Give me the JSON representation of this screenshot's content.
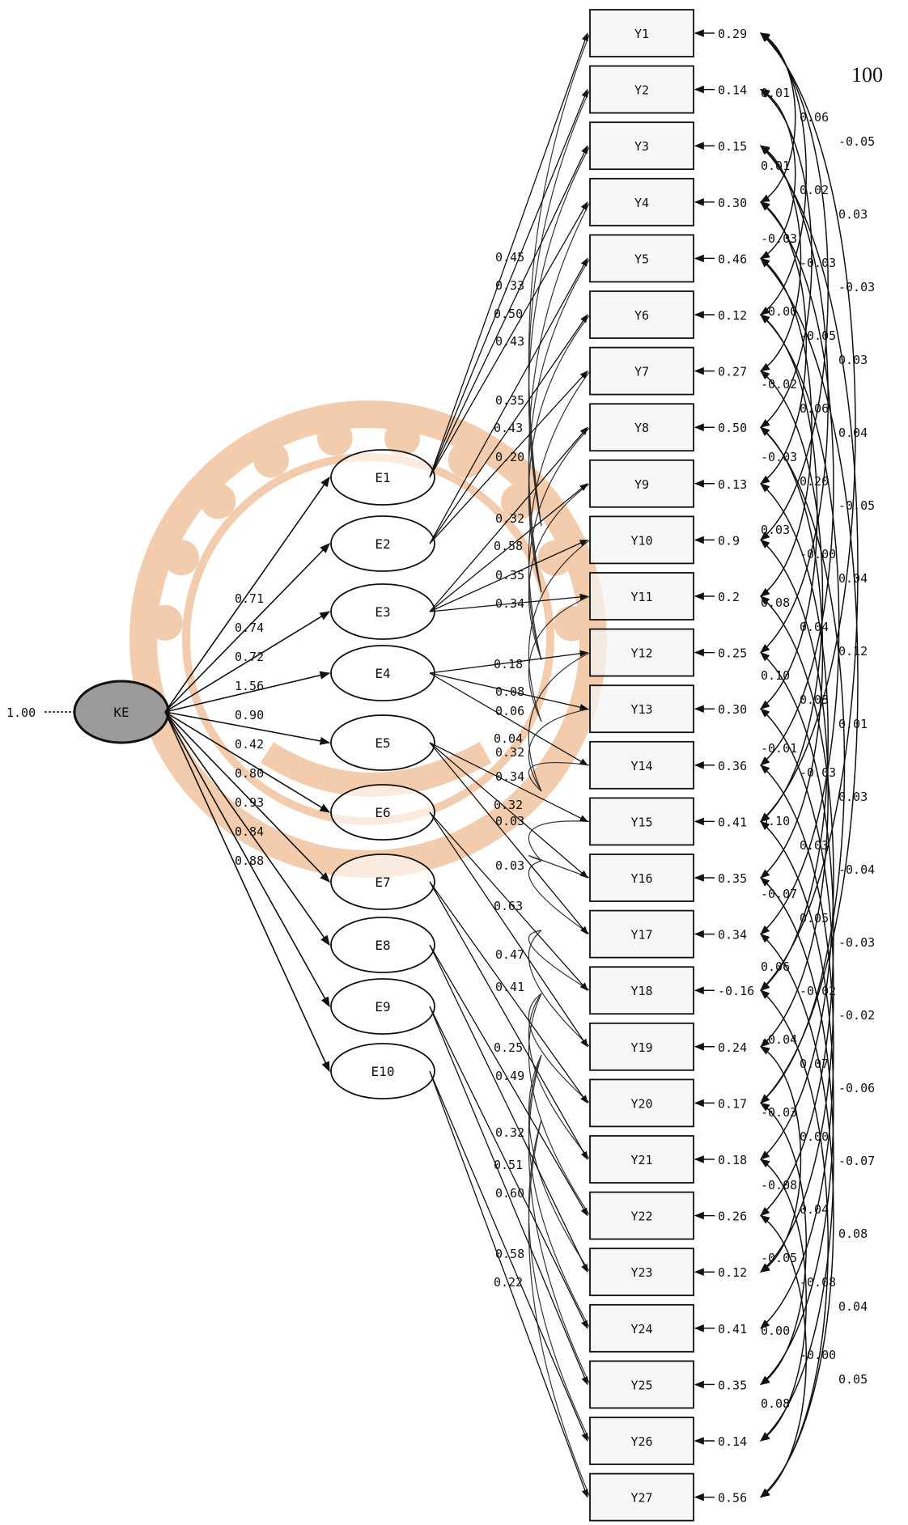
{
  "page_number": "100",
  "latent": {
    "label": "KE",
    "variance": "1.00"
  },
  "factors": [
    {
      "label": "E1",
      "loading": "0.71"
    },
    {
      "label": "E2",
      "loading": "0.74"
    },
    {
      "label": "E3",
      "loading": "0.72"
    },
    {
      "label": "E4",
      "loading": "1.56"
    },
    {
      "label": "E5",
      "loading": "0.90"
    },
    {
      "label": "E6",
      "loading": "0.42"
    },
    {
      "label": "E7",
      "loading": "0.80"
    },
    {
      "label": "E8",
      "loading": "0.93"
    },
    {
      "label": "E9",
      "loading": "0.84"
    },
    {
      "label": "E10",
      "loading": "0.88"
    }
  ],
  "indicators": [
    {
      "label": "Y1",
      "error": "0.29"
    },
    {
      "label": "Y2",
      "error": "0.14"
    },
    {
      "label": "Y3",
      "error": "0.15"
    },
    {
      "label": "Y4",
      "error": "0.30"
    },
    {
      "label": "Y5",
      "error": "0.46"
    },
    {
      "label": "Y6",
      "error": "0.12"
    },
    {
      "label": "Y7",
      "error": "0.27"
    },
    {
      "label": "Y8",
      "error": "0.50"
    },
    {
      "label": "Y9",
      "error": "0.13"
    },
    {
      "label": "Y10",
      "error": "0.9"
    },
    {
      "label": "Y11",
      "error": "0.2"
    },
    {
      "label": "Y12",
      "error": "0.25"
    },
    {
      "label": "Y13",
      "error": "0.30"
    },
    {
      "label": "Y14",
      "error": "0.36"
    },
    {
      "label": "Y15",
      "error": "0.41"
    },
    {
      "label": "Y16",
      "error": "0.35"
    },
    {
      "label": "Y17",
      "error": "0.34"
    },
    {
      "label": "Y18",
      "error": "-0.16"
    },
    {
      "label": "Y19",
      "error": "0.24"
    },
    {
      "label": "Y20",
      "error": "0.17"
    },
    {
      "label": "Y21",
      "error": "0.18"
    },
    {
      "label": "Y22",
      "error": "0.26"
    },
    {
      "label": "Y23",
      "error": "0.12"
    },
    {
      "label": "Y24",
      "error": "0.41"
    },
    {
      "label": "Y25",
      "error": "0.35"
    },
    {
      "label": "Y26",
      "error": "0.14"
    },
    {
      "label": "Y27",
      "error": "0.56"
    }
  ],
  "indicator_loadings": [
    "0.45",
    "0.33",
    "0.50",
    "0.43",
    "0.35",
    "0.43",
    "0.20",
    "0.32",
    "0.58",
    "0.35",
    "0.34",
    "0.18",
    "0.08",
    "0.06",
    "0.04",
    "0.32",
    "0.34",
    "0.32",
    "0.03",
    "0.03",
    "0.63",
    "0.47",
    "0.41",
    "0.25",
    "0.49",
    "0.32",
    "0.51",
    "0.60",
    "0.58",
    "0.22"
  ],
  "covariances": [
    "0.01",
    "0.06",
    "-0.05",
    "0.01",
    "0.02",
    "0.03",
    "-0.03",
    "-0.03",
    "-0.03",
    "-0.00",
    "-0.05",
    "0.03",
    "-0.02",
    "0.06",
    "0.04",
    "-0.03",
    "0.20",
    "-0.05",
    "0.03",
    "-0.00",
    "0.04",
    "0.08",
    "0.04",
    "0.12",
    "0.10",
    "0.03",
    "0.01",
    "-0.01",
    "-0.03",
    "0.03",
    "0.10",
    "0.03",
    "-0.04",
    "-0.07",
    "0.05",
    "-0.03",
    "0.06",
    "-0.02",
    "-0.02",
    "-0.04",
    "0.07",
    "-0.06",
    "-0.03",
    "0.00",
    "-0.07",
    "-0.08",
    "0.04",
    "0.08",
    "-0.05",
    "-0.08",
    "0.04",
    "0.00",
    "-0.00",
    "0.05",
    "0.08"
  ],
  "colors": {
    "line": "#111111",
    "latent_fill": "#9a9a9a",
    "box_fill": "#f4f4f4",
    "watermark": "#e8a46a"
  }
}
